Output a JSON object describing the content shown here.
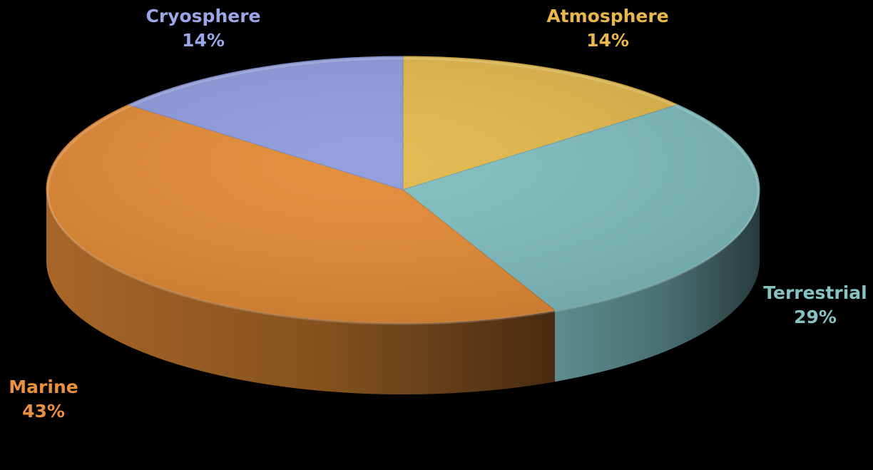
{
  "chart_data": {
    "type": "pie",
    "style": "3d-tilted",
    "start_angle_deg": -90,
    "direction": "clockwise",
    "background": "#000000",
    "title": "",
    "slices": [
      {
        "label": "Atmosphere",
        "value": 14,
        "value_label": "14%",
        "color": "#E3B84A",
        "label_color": "#E8B84E"
      },
      {
        "label": "Terrestrial",
        "value": 29,
        "value_label": "29%",
        "color": "#7EBDC0",
        "label_color": "#85C2C4"
      },
      {
        "label": "Marine",
        "value": 43,
        "value_label": "43%",
        "color": "#E28A34",
        "label_color": "#EB9040"
      },
      {
        "label": "Cryosphere",
        "value": 14,
        "value_label": "14%",
        "color": "#8E9BDC",
        "label_color": "#9BA6E8"
      }
    ]
  }
}
